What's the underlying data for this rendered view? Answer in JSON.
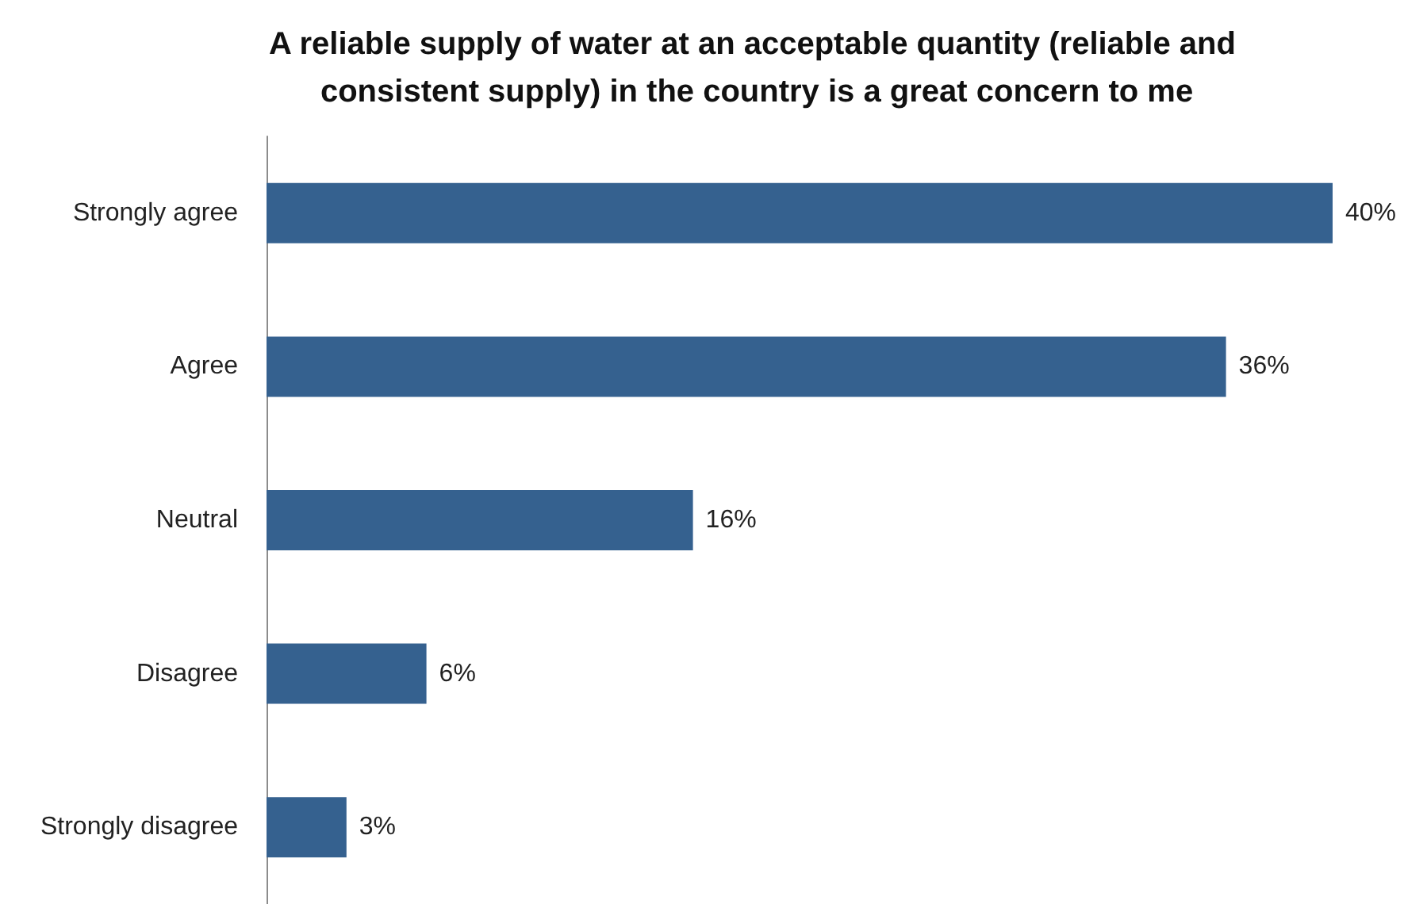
{
  "chart_data": {
    "type": "bar",
    "orientation": "horizontal",
    "title": "A reliable supply of water at an acceptable quantity (reliable and consistent supply) in the country is a great concern to me",
    "categories": [
      "Strongly agree",
      "Agree",
      "Neutral",
      "Disagree",
      "Strongly disagree"
    ],
    "values": [
      40,
      36,
      16,
      6,
      3
    ],
    "color": "#35618f",
    "value_labels": [
      "40%",
      "36%",
      "16%",
      "6%",
      "3%"
    ]
  }
}
